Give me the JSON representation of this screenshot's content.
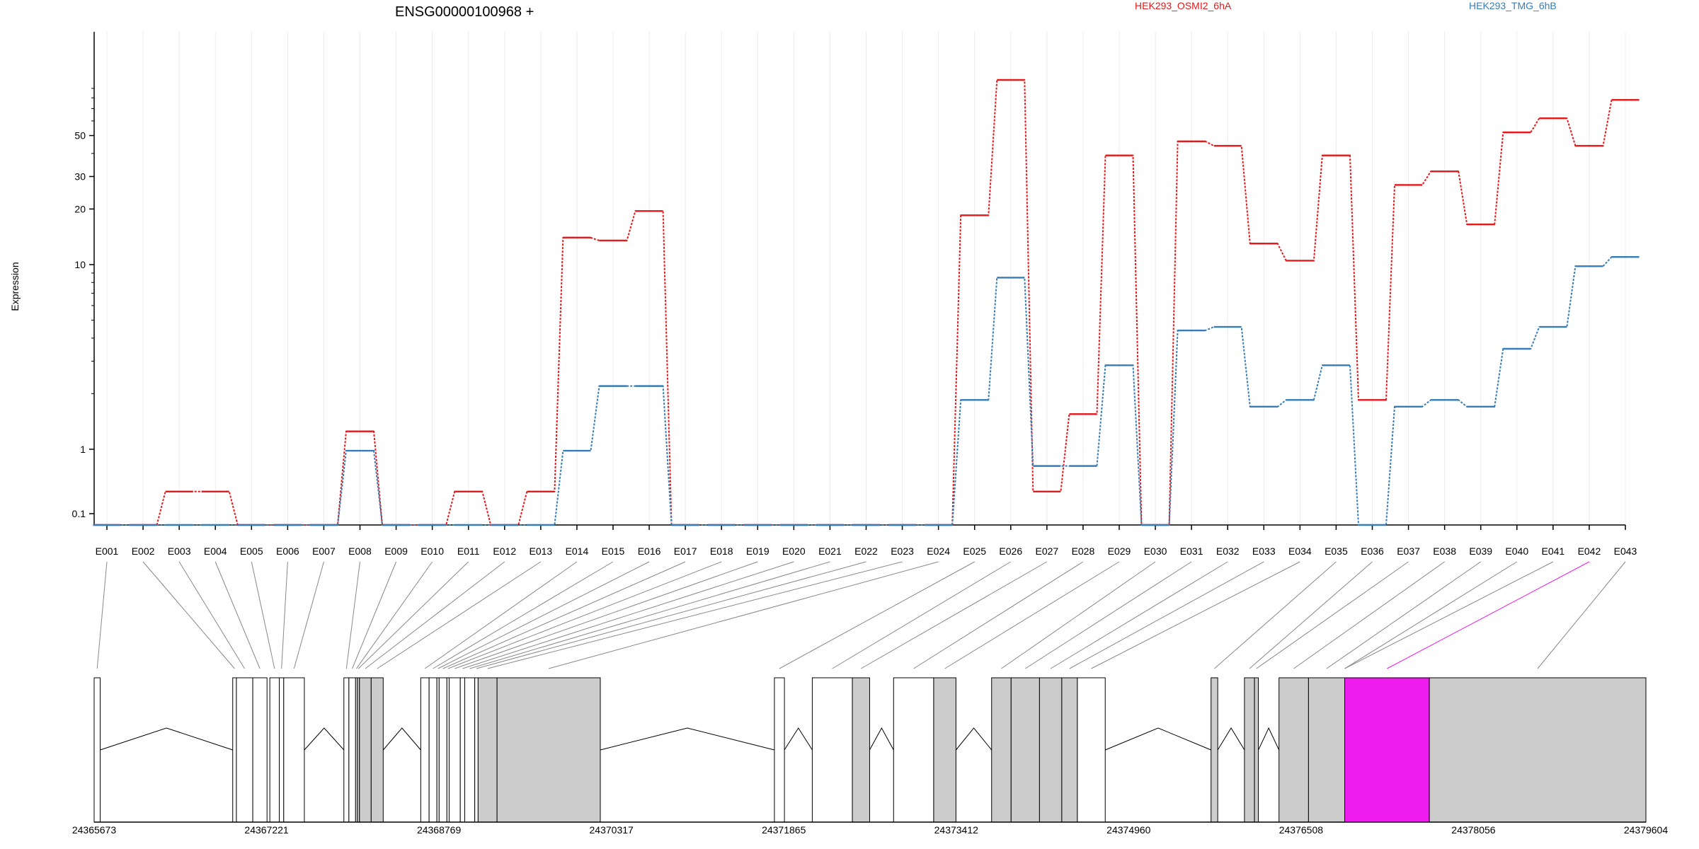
{
  "chart_data": {
    "type": "line",
    "title": "ENSG00000100968 +",
    "xlabel": "",
    "ylabel": "Expression",
    "y_scale": "log",
    "y_ticks": [
      0.1,
      1,
      10,
      20,
      30,
      50
    ],
    "y_tick_labels": [
      "0.1",
      "1",
      "10",
      "20",
      "30",
      "50"
    ],
    "legend_placement": "top",
    "categories": [
      "E001",
      "E002",
      "E003",
      "E004",
      "E005",
      "E006",
      "E007",
      "E008",
      "E009",
      "E010",
      "E011",
      "E012",
      "E013",
      "E014",
      "E015",
      "E016",
      "E017",
      "E018",
      "E019",
      "E020",
      "E021",
      "E022",
      "E023",
      "E024",
      "E025",
      "E026",
      "E027",
      "E028",
      "E029",
      "E030",
      "E031",
      "E032",
      "E033",
      "E034",
      "E035",
      "E036",
      "E037",
      "E038",
      "E039",
      "E040",
      "E041",
      "E042",
      "E043"
    ],
    "series": [
      {
        "name": "HEK293_OSMI2_6hA",
        "color": "#e41a1c",
        "values": [
          0.04,
          0.04,
          0.22,
          0.22,
          0.04,
          0.04,
          0.04,
          1.25,
          0.04,
          0.04,
          0.22,
          0.04,
          0.22,
          14,
          13.5,
          19.5,
          0.04,
          0.04,
          0.04,
          0.04,
          0.04,
          0.04,
          0.04,
          0.04,
          18.5,
          100,
          0.22,
          1.55,
          39,
          0.04,
          46.5,
          44,
          13,
          10.5,
          39,
          1.85,
          27,
          32,
          16.5,
          52,
          62,
          44,
          78
        ]
      },
      {
        "name": "HEK293_TMG_6hB",
        "color": "#377eb8",
        "values": [
          0.04,
          0.04,
          0.04,
          0.04,
          0.04,
          0.04,
          0.04,
          0.95,
          0.04,
          0.04,
          0.04,
          0.04,
          0.04,
          0.95,
          2.2,
          2.2,
          0.04,
          0.04,
          0.04,
          0.04,
          0.04,
          0.04,
          0.04,
          0.04,
          1.85,
          8.5,
          0.55,
          0.55,
          2.85,
          0.04,
          4.4,
          4.6,
          1.7,
          1.85,
          2.85,
          0.04,
          1.7,
          1.85,
          1.7,
          3.5,
          4.6,
          9.8,
          11
        ]
      }
    ],
    "highlighted_exon": "E042",
    "highlight_color": "#ee1cee",
    "genomic_axis": {
      "start": 24365673,
      "end": 24379604,
      "tick_labels": [
        "24365673",
        "24367221",
        "24368769",
        "24370317",
        "24371865",
        "24373412",
        "24374960",
        "24376508",
        "24378056",
        "24379604"
      ]
    },
    "exons": [
      {
        "id": "E001",
        "start": 24365673,
        "end": 24365727,
        "shade": "white"
      },
      {
        "id": "E002",
        "start": 24366917,
        "end": 24366950,
        "shade": "white"
      },
      {
        "id": "E003",
        "start": 24366950,
        "end": 24367097,
        "shade": "white"
      },
      {
        "id": "E004",
        "start": 24367097,
        "end": 24367225,
        "shade": "white"
      },
      {
        "id": "E005",
        "start": 24367250,
        "end": 24367335,
        "shade": "white"
      },
      {
        "id": "E006",
        "start": 24367335,
        "end": 24367375,
        "shade": "white"
      },
      {
        "id": "E007",
        "start": 24367375,
        "end": 24367560,
        "shade": "white"
      },
      {
        "id": "E008",
        "start": 24367915,
        "end": 24367960,
        "shade": "white"
      },
      {
        "id": "E009",
        "start": 24367960,
        "end": 24368020,
        "shade": "white"
      },
      {
        "id": "E010",
        "start": 24368020,
        "end": 24368035,
        "shade": "white"
      },
      {
        "id": "E011",
        "start": 24368035,
        "end": 24368055,
        "shade": "gray"
      },
      {
        "id": "E012",
        "start": 24368055,
        "end": 24368160,
        "shade": "gray"
      },
      {
        "id": "E013",
        "start": 24368160,
        "end": 24368268,
        "shade": "gray"
      },
      {
        "id": "E014",
        "start": 24368605,
        "end": 24368680,
        "shade": "white"
      },
      {
        "id": "E015",
        "start": 24368680,
        "end": 24368750,
        "shade": "white"
      },
      {
        "id": "E016",
        "start": 24368750,
        "end": 24368770,
        "shade": "white"
      },
      {
        "id": "E017",
        "start": 24368770,
        "end": 24368840,
        "shade": "white"
      },
      {
        "id": "E018",
        "start": 24368840,
        "end": 24368860,
        "shade": "white"
      },
      {
        "id": "E019",
        "start": 24368860,
        "end": 24368960,
        "shade": "white"
      },
      {
        "id": "E020",
        "start": 24368960,
        "end": 24369000,
        "shade": "white"
      },
      {
        "id": "E021",
        "start": 24369000,
        "end": 24369090,
        "shade": "white"
      },
      {
        "id": "E022",
        "start": 24369090,
        "end": 24369120,
        "shade": "white"
      },
      {
        "id": "E023",
        "start": 24369120,
        "end": 24369290,
        "shade": "gray"
      },
      {
        "id": "E024",
        "start": 24369290,
        "end": 24370217,
        "shade": "gray"
      },
      {
        "id": "E025",
        "start": 24371780,
        "end": 24371870,
        "shade": "white"
      },
      {
        "id": "E026",
        "start": 24372120,
        "end": 24372480,
        "shade": "white"
      },
      {
        "id": "E027",
        "start": 24372480,
        "end": 24372635,
        "shade": "gray"
      },
      {
        "id": "E028",
        "start": 24372850,
        "end": 24373210,
        "shade": "white"
      },
      {
        "id": "E029",
        "start": 24373210,
        "end": 24373410,
        "shade": "gray"
      },
      {
        "id": "E030",
        "start": 24373730,
        "end": 24373905,
        "shade": "gray"
      },
      {
        "id": "E031",
        "start": 24373905,
        "end": 24374160,
        "shade": "gray"
      },
      {
        "id": "E032",
        "start": 24374160,
        "end": 24374360,
        "shade": "gray"
      },
      {
        "id": "E033",
        "start": 24374360,
        "end": 24374500,
        "shade": "gray"
      },
      {
        "id": "E034",
        "start": 24374500,
        "end": 24374750,
        "shade": "white"
      },
      {
        "id": "E035",
        "start": 24375700,
        "end": 24375760,
        "shade": "gray"
      },
      {
        "id": "E036",
        "start": 24376000,
        "end": 24376090,
        "shade": "gray"
      },
      {
        "id": "E037",
        "start": 24376090,
        "end": 24376125,
        "shade": "gray"
      },
      {
        "id": "E038",
        "start": 24376310,
        "end": 24376575,
        "shade": "gray"
      },
      {
        "id": "E039",
        "start": 24376575,
        "end": 24376900,
        "shade": "gray"
      },
      {
        "id": "E040",
        "start": 24376900,
        "end": 24376900,
        "shade": "gray"
      },
      {
        "id": "E041",
        "start": 24376900,
        "end": 24376900,
        "shade": "gray"
      },
      {
        "id": "E042",
        "start": 24376900,
        "end": 24377660,
        "shade": "magenta"
      },
      {
        "id": "E043",
        "start": 24377660,
        "end": 24379604,
        "shade": "gray"
      }
    ]
  }
}
